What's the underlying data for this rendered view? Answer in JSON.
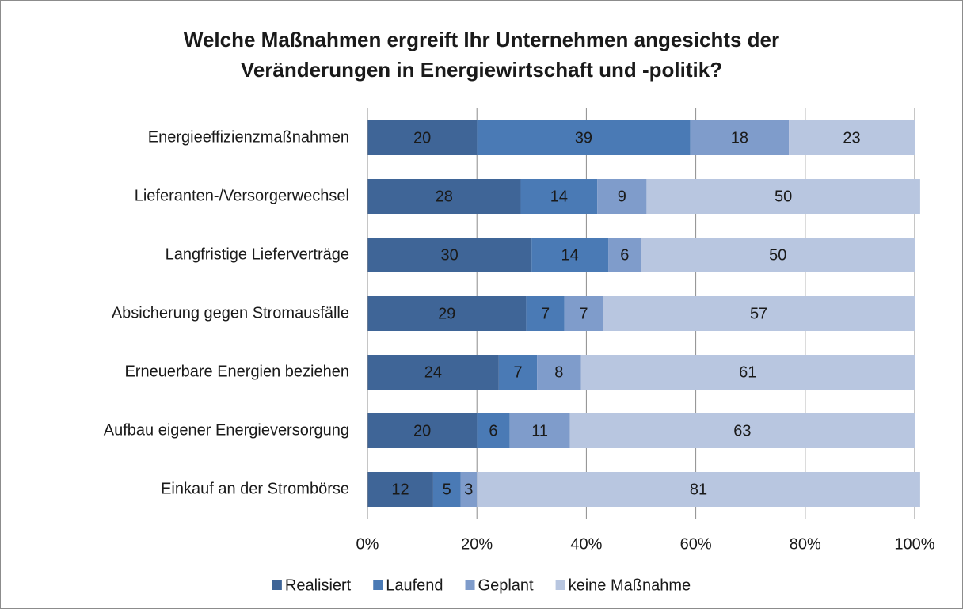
{
  "chart_data": {
    "type": "stacked-bar-horizontal",
    "title": [
      "Welche Maßnahmen ergreift Ihr Unternehmen angesichts der",
      "Veränderungen in Energiewirtschaft und -politik?"
    ],
    "categories": [
      "Energieeffizienzmaßnahmen",
      "Lieferanten-/Versorgerwechsel",
      "Langfristige Lieferverträge",
      "Absicherung gegen Stromausfälle",
      "Erneuerbare Energien beziehen",
      "Aufbau eigener Energieversorgung",
      "Einkauf an der Strombörse"
    ],
    "series": [
      {
        "name": "Realisiert",
        "color": "#3f6597",
        "values": [
          20,
          28,
          30,
          29,
          24,
          20,
          12
        ]
      },
      {
        "name": "Laufend",
        "color": "#4a7ab5",
        "values": [
          39,
          14,
          14,
          7,
          7,
          6,
          5
        ]
      },
      {
        "name": "Geplant",
        "color": "#7f9ccb",
        "values": [
          18,
          9,
          6,
          7,
          8,
          11,
          3
        ]
      },
      {
        "name": "keine Maßnahme",
        "color": "#b8c6e0",
        "values": [
          23,
          50,
          50,
          57,
          61,
          63,
          81
        ]
      }
    ],
    "xlim": [
      0,
      100
    ],
    "xticks": [
      {
        "value": 0,
        "label": "0%"
      },
      {
        "value": 20,
        "label": "20%"
      },
      {
        "value": 40,
        "label": "40%"
      },
      {
        "value": 60,
        "label": "60%"
      },
      {
        "value": 80,
        "label": "80%"
      },
      {
        "value": 100,
        "label": "100%"
      }
    ],
    "grid": true,
    "legend": "bottom"
  }
}
